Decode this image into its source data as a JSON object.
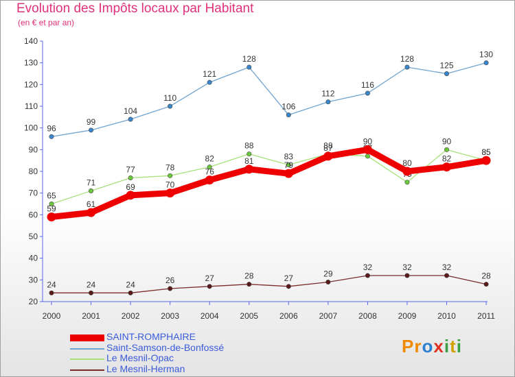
{
  "title": "Evolution des Impôts locaux par Habitant",
  "subtitle": "(en € et par an)",
  "logo": {
    "text": "Proxiti",
    "letters": [
      "P",
      "r",
      "o",
      "x",
      "i",
      "t",
      "i"
    ],
    "colors": [
      "#f08a00",
      "#f08a00",
      "#2a7fd0",
      "#e03020",
      "#3aa040",
      "#d0a000",
      "#3aa040"
    ]
  },
  "chart_data": {
    "type": "line",
    "x": [
      "2000",
      "2001",
      "2002",
      "2003",
      "2004",
      "2005",
      "2006",
      "2007",
      "2008",
      "2009",
      "2010",
      "2011"
    ],
    "ylim": [
      20,
      140
    ],
    "yticks": [
      "20",
      "30",
      "40",
      "50",
      "60",
      "70",
      "80",
      "90",
      "100",
      "110",
      "120",
      "130",
      "140"
    ],
    "grid": false,
    "legend_position": "bottom-left",
    "series": [
      {
        "name": "Saint-Samson-de-Bonfossé",
        "color": "#6fa3d0",
        "marker": "#3a86cc",
        "values": [
          96,
          99,
          104,
          110,
          121,
          128,
          106,
          112,
          116,
          128,
          125,
          130
        ],
        "labels": [
          "96",
          "99",
          "104",
          "110",
          "121",
          "128",
          "106",
          "112",
          "116",
          "128",
          "125",
          "130"
        ]
      },
      {
        "name": "Le Mesnil-Opac",
        "color": "#a8e07a",
        "marker": "#6cc83c",
        "values": [
          65,
          71,
          77,
          78,
          82,
          88,
          83,
          88,
          87,
          75,
          90,
          85
        ],
        "labels": [
          "65",
          "71",
          "77",
          "78",
          "82",
          "88",
          "83",
          "88",
          "87",
          "75",
          "90",
          "85"
        ]
      },
      {
        "name": "Le Mesnil-Herman",
        "color": "#7a2a2a",
        "marker": "#5a1a1a",
        "values": [
          24,
          24,
          24,
          26,
          27,
          28,
          27,
          29,
          32,
          32,
          32,
          28
        ],
        "labels": [
          "24",
          "24",
          "24",
          "26",
          "27",
          "28",
          "27",
          "29",
          "32",
          "32",
          "32",
          "28"
        ]
      },
      {
        "name": "SAINT-ROMPHAIRE",
        "color": "#ee0000",
        "marker": "#ee0000",
        "values": [
          59,
          61,
          69,
          70,
          76,
          81,
          79,
          87,
          90,
          80,
          82,
          85
        ],
        "labels": [
          "59",
          "61",
          "69",
          "70",
          "76",
          "81",
          "79",
          "87",
          "90",
          "80",
          "82",
          "85"
        ]
      }
    ],
    "legend": [
      "SAINT-ROMPHAIRE",
      "Saint-Samson-de-Bonfossé",
      "Le Mesnil-Opac",
      "Le Mesnil-Herman"
    ]
  }
}
